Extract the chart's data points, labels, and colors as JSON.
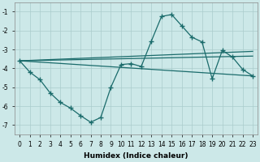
{
  "bg_color": "#cce8e8",
  "grid_color": "#aacccc",
  "line_color": "#1a6b6b",
  "xlabel": "Humidex (Indice chaleur)",
  "xlabel_fontsize": 6.5,
  "tick_fontsize": 5.5,
  "xlim_min": -0.5,
  "xlim_max": 23.5,
  "ylim_min": -7.5,
  "ylim_max": -0.5,
  "yticks": [
    -7,
    -6,
    -5,
    -4,
    -3,
    -2,
    -1
  ],
  "xticks": [
    0,
    1,
    2,
    3,
    4,
    5,
    6,
    7,
    8,
    9,
    10,
    11,
    12,
    13,
    14,
    15,
    16,
    17,
    18,
    19,
    20,
    21,
    22,
    23
  ],
  "main_x": [
    0,
    1,
    2,
    3,
    4,
    5,
    6,
    7,
    8,
    9,
    10,
    11,
    12,
    13,
    14,
    15,
    16,
    17,
    18,
    19,
    20,
    21,
    22,
    23
  ],
  "main_y": [
    -3.6,
    -4.2,
    -4.6,
    -5.3,
    -5.8,
    -6.1,
    -6.5,
    -6.85,
    -6.6,
    -5.0,
    -3.8,
    -3.75,
    -3.9,
    -2.55,
    -1.25,
    -1.15,
    -1.75,
    -2.35,
    -2.6,
    -4.55,
    -3.05,
    -3.4,
    -4.05,
    -4.4
  ],
  "trend1_x": [
    0,
    23
  ],
  "trend1_y": [
    -3.6,
    -3.1
  ],
  "trend2_x": [
    0,
    23
  ],
  "trend2_y": [
    -3.6,
    -3.35
  ],
  "trend3_x": [
    0,
    23
  ],
  "trend3_y": [
    -3.6,
    -4.4
  ]
}
